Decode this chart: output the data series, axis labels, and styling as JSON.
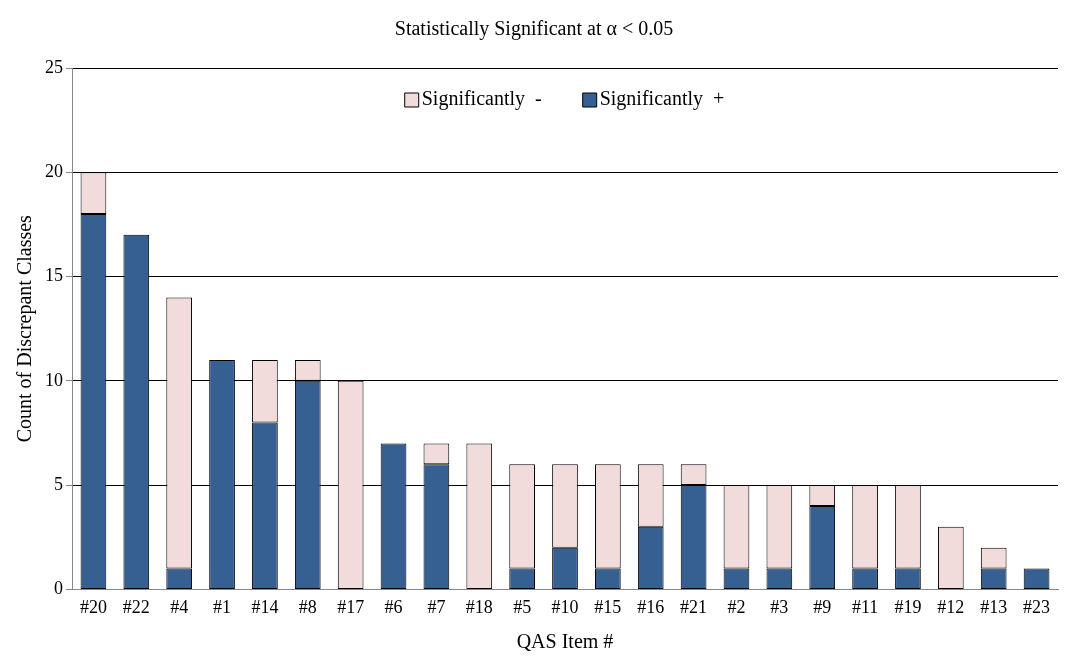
{
  "chart_data": {
    "type": "bar",
    "title": "Statistically Significant at α < 0.05",
    "xlabel": "QAS Item #",
    "ylabel": "Count of Discrepant Classes",
    "categories": [
      "#20",
      "#22",
      "#4",
      "#1",
      "#14",
      "#8",
      "#17",
      "#6",
      "#7",
      "#18",
      "#5",
      "#10",
      "#15",
      "#16",
      "#21",
      "#2",
      "#3",
      "#9",
      "#11",
      "#19",
      "#12",
      "#13",
      "#23"
    ],
    "series": [
      {
        "name": "Significantly  +",
        "color": "#376092",
        "values": [
          18,
          17,
          1,
          11,
          8,
          10,
          0,
          7,
          6,
          0,
          1,
          2,
          1,
          3,
          5,
          1,
          1,
          4,
          1,
          1,
          0,
          1,
          1
        ]
      },
      {
        "name": "Significantly  -",
        "color": "#f2dcdb",
        "values": [
          2,
          0,
          13,
          0,
          3,
          1,
          10,
          0,
          1,
          7,
          5,
          4,
          5,
          3,
          1,
          4,
          4,
          1,
          4,
          4,
          3,
          1,
          0
        ]
      }
    ],
    "stacked": true,
    "ylim": [
      0,
      25
    ],
    "yticks": [
      0,
      5,
      10,
      15,
      20,
      25
    ],
    "grid": "y",
    "legend": "top"
  }
}
